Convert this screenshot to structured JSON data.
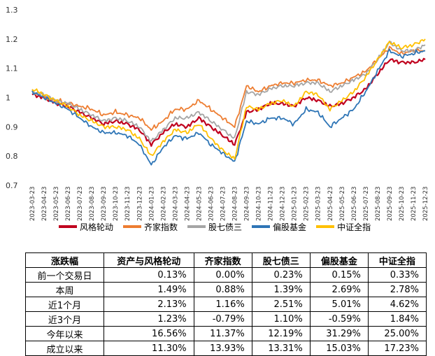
{
  "chart_data": {
    "type": "line",
    "ylim": [
      0.7,
      1.3
    ],
    "yticks": [
      "0.7",
      "0.8",
      "0.9",
      "1",
      "1.1",
      "1.2",
      "1.3"
    ],
    "x_labels": [
      "2023-03-23",
      "2023-04-23",
      "2023-05-23",
      "2023-06-23",
      "2023-07-23",
      "2023-08-23",
      "2023-09-23",
      "2023-10-23",
      "2023-11-23",
      "2023-12-23",
      "2024-01-23",
      "2024-02-23",
      "2024-03-23",
      "2024-04-23",
      "2024-05-23",
      "2024-06-23",
      "2024-07-23",
      "2024-08-23",
      "2024-09-23",
      "2024-10-23",
      "2024-11-23",
      "2024-12-23",
      "2025-01-23",
      "2025-02-23",
      "2025-03-23",
      "2025-04-23",
      "2025-05-23",
      "2025-06-23",
      "2025-07-23",
      "2025-08-23",
      "2025-09-23",
      "2025-10-23",
      "2025-11-23",
      "2025-12-23"
    ],
    "series": [
      {
        "name": "风格轮动",
        "color": "#C0001E",
        "values": [
          1.01,
          1.0,
          0.98,
          0.97,
          0.95,
          0.93,
          0.91,
          0.92,
          0.91,
          0.89,
          0.84,
          0.88,
          0.91,
          0.9,
          0.93,
          0.9,
          0.87,
          0.84,
          0.95,
          0.96,
          0.98,
          0.98,
          0.97,
          1.0,
          0.99,
          0.97,
          0.98,
          1.0,
          1.03,
          1.08,
          1.13,
          1.12,
          1.12,
          1.13
        ]
      },
      {
        "name": "齐家指数",
        "color": "#ED7D31",
        "values": [
          1.02,
          1.0,
          0.99,
          0.98,
          0.97,
          0.96,
          0.94,
          0.95,
          0.94,
          0.93,
          0.89,
          0.92,
          0.96,
          0.96,
          0.99,
          0.96,
          0.93,
          0.9,
          1.04,
          1.02,
          1.04,
          1.05,
          1.05,
          1.06,
          1.06,
          1.04,
          1.05,
          1.07,
          1.09,
          1.13,
          1.17,
          1.15,
          1.16,
          1.16
        ]
      },
      {
        "name": "股七债三",
        "color": "#A5A5A5",
        "values": [
          1.02,
          1.01,
          0.99,
          0.98,
          0.96,
          0.94,
          0.92,
          0.93,
          0.92,
          0.9,
          0.85,
          0.89,
          0.93,
          0.93,
          0.95,
          0.92,
          0.89,
          0.86,
          1.02,
          1.01,
          1.03,
          1.04,
          1.04,
          1.05,
          1.05,
          1.02,
          1.04,
          1.06,
          1.08,
          1.13,
          1.19,
          1.16,
          1.16,
          1.18
        ]
      },
      {
        "name": "偏股基金",
        "color": "#2E75B6",
        "values": [
          1.02,
          1.0,
          0.98,
          0.96,
          0.93,
          0.9,
          0.88,
          0.88,
          0.87,
          0.84,
          0.77,
          0.83,
          0.87,
          0.86,
          0.88,
          0.84,
          0.81,
          0.78,
          0.92,
          0.91,
          0.93,
          0.93,
          0.91,
          0.96,
          0.95,
          0.9,
          0.93,
          0.96,
          1.02,
          1.09,
          1.16,
          1.14,
          1.15,
          1.16
        ]
      },
      {
        "name": "中证全指",
        "color": "#FFC000",
        "values": [
          1.03,
          1.01,
          0.99,
          0.97,
          0.94,
          0.92,
          0.9,
          0.9,
          0.89,
          0.86,
          0.8,
          0.85,
          0.89,
          0.88,
          0.91,
          0.86,
          0.82,
          0.79,
          0.97,
          0.96,
          0.98,
          0.99,
          0.97,
          1.02,
          1.01,
          0.96,
          0.99,
          1.02,
          1.07,
          1.13,
          1.19,
          1.17,
          1.18,
          1.2
        ]
      }
    ]
  },
  "table": {
    "headers": [
      "涨跌幅",
      "资产与风格轮动",
      "齐家指数",
      "股七债三",
      "偏股基金",
      "中证全指"
    ],
    "rows": [
      [
        "前一个交易日",
        "0.13%",
        "0.00%",
        "0.23%",
        "0.15%",
        "0.33%"
      ],
      [
        "本周",
        "1.49%",
        "0.88%",
        "1.39%",
        "2.69%",
        "2.78%"
      ],
      [
        "近1个月",
        "2.13%",
        "1.16%",
        "2.51%",
        "5.01%",
        "4.62%"
      ],
      [
        "近3个月",
        "1.23%",
        "-0.79%",
        "1.10%",
        "-0.59%",
        "1.84%"
      ],
      [
        "今年以来",
        "16.56%",
        "11.37%",
        "12.19%",
        "31.29%",
        "25.00%"
      ],
      [
        "成立以来",
        "11.30%",
        "13.93%",
        "13.31%",
        "15.03%",
        "17.23%"
      ]
    ]
  }
}
